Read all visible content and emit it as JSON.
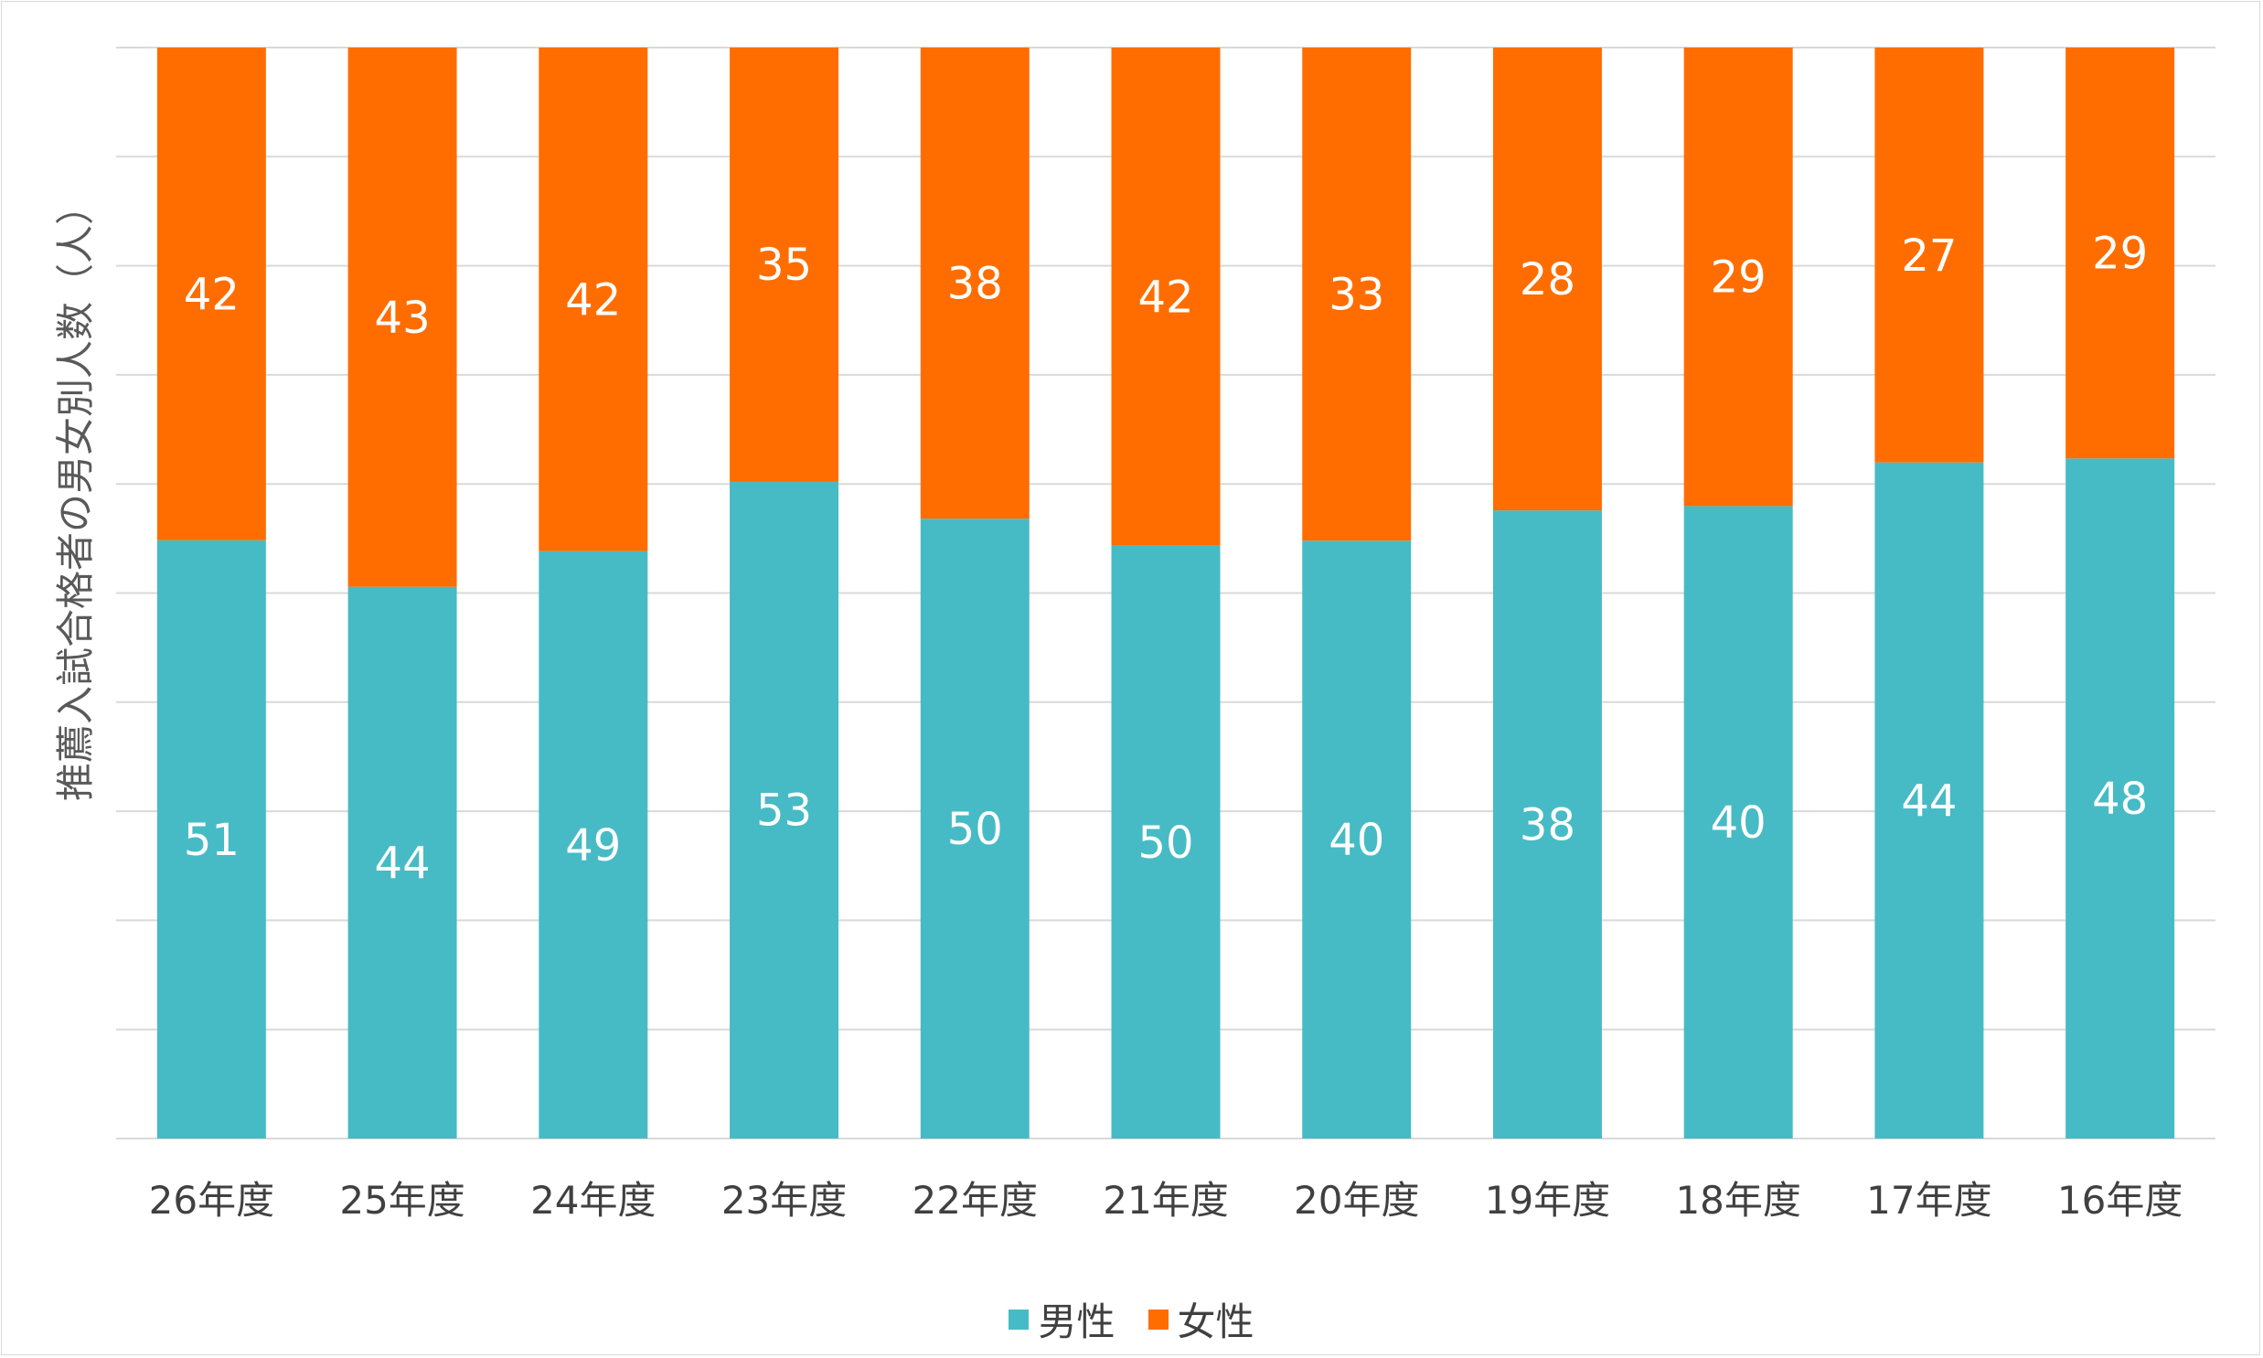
{
  "chart_data": {
    "type": "bar",
    "stacked": true,
    "normalized": true,
    "ylabel": "推薦入試合格者の男女別人数（人）",
    "categories": [
      "26年度",
      "25年度",
      "24年度",
      "23年度",
      "22年度",
      "21年度",
      "20年度",
      "19年度",
      "18年度",
      "17年度",
      "16年度"
    ],
    "series": [
      {
        "name": "男性",
        "color": "#46BBC5",
        "values": [
          51,
          44,
          49,
          53,
          50,
          50,
          40,
          38,
          40,
          44,
          48
        ]
      },
      {
        "name": "女性",
        "color": "#FF6D00",
        "values": [
          42,
          43,
          42,
          35,
          38,
          42,
          33,
          28,
          29,
          27,
          29
        ]
      }
    ],
    "grid": true,
    "legend": "bottom"
  }
}
